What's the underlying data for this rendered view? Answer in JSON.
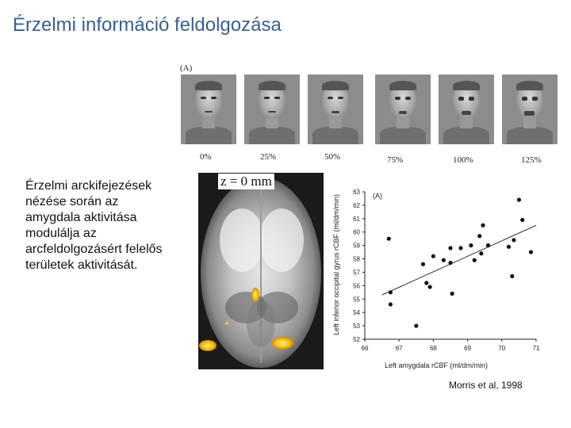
{
  "slide": {
    "title": "Érzelmi információ feldolgozása",
    "body_text": "Érzelmi arckifejezések nézése során az amygdala aktivitása modulálja az arcfeldolgozásért felelős területek aktivitását.",
    "citation": "Morris et al, 1998"
  },
  "figure_top": {
    "panel_label": "(A)",
    "intensity_labels": [
      "0%",
      "25%",
      "50%",
      "75%",
      "100%",
      "125%"
    ]
  },
  "brain_image": {
    "z_label": "z = 0 mm"
  },
  "chart_data": {
    "type": "scatter",
    "panel_label": "(A)",
    "xlabel": "Left amygdala rCBF (ml/dm/min)",
    "ylabel": "Left inferior occipital gyrus rCBF (ml/dm/min)",
    "xlim": [
      66,
      71
    ],
    "ylim": [
      52,
      63
    ],
    "x_ticks": [
      "66",
      "67",
      "68",
      "69",
      "70",
      "71"
    ],
    "y_ticks": [
      "52",
      "53",
      "54",
      "55",
      "56",
      "57",
      "58",
      "59",
      "60",
      "61",
      "62",
      "63"
    ],
    "points": [
      {
        "x": 66.7,
        "y": 59.5
      },
      {
        "x": 66.75,
        "y": 55.5
      },
      {
        "x": 66.75,
        "y": 54.6
      },
      {
        "x": 67.5,
        "y": 53.0
      },
      {
        "x": 67.7,
        "y": 57.6
      },
      {
        "x": 67.8,
        "y": 56.2
      },
      {
        "x": 67.9,
        "y": 55.9
      },
      {
        "x": 68.0,
        "y": 58.2
      },
      {
        "x": 68.3,
        "y": 57.9
      },
      {
        "x": 68.5,
        "y": 58.8
      },
      {
        "x": 68.5,
        "y": 57.7
      },
      {
        "x": 68.55,
        "y": 55.4
      },
      {
        "x": 68.8,
        "y": 58.8
      },
      {
        "x": 69.1,
        "y": 59.0
      },
      {
        "x": 69.2,
        "y": 57.9
      },
      {
        "x": 69.35,
        "y": 59.7
      },
      {
        "x": 69.4,
        "y": 58.4
      },
      {
        "x": 69.45,
        "y": 60.5
      },
      {
        "x": 69.6,
        "y": 59.0
      },
      {
        "x": 70.2,
        "y": 58.9
      },
      {
        "x": 70.3,
        "y": 56.7
      },
      {
        "x": 70.35,
        "y": 59.4
      },
      {
        "x": 70.5,
        "y": 62.4
      },
      {
        "x": 70.6,
        "y": 60.9
      },
      {
        "x": 70.85,
        "y": 58.5
      }
    ],
    "fit_line": {
      "x": [
        66.5,
        71
      ],
      "y": [
        55.3,
        60.5
      ]
    },
    "grid": false
  }
}
